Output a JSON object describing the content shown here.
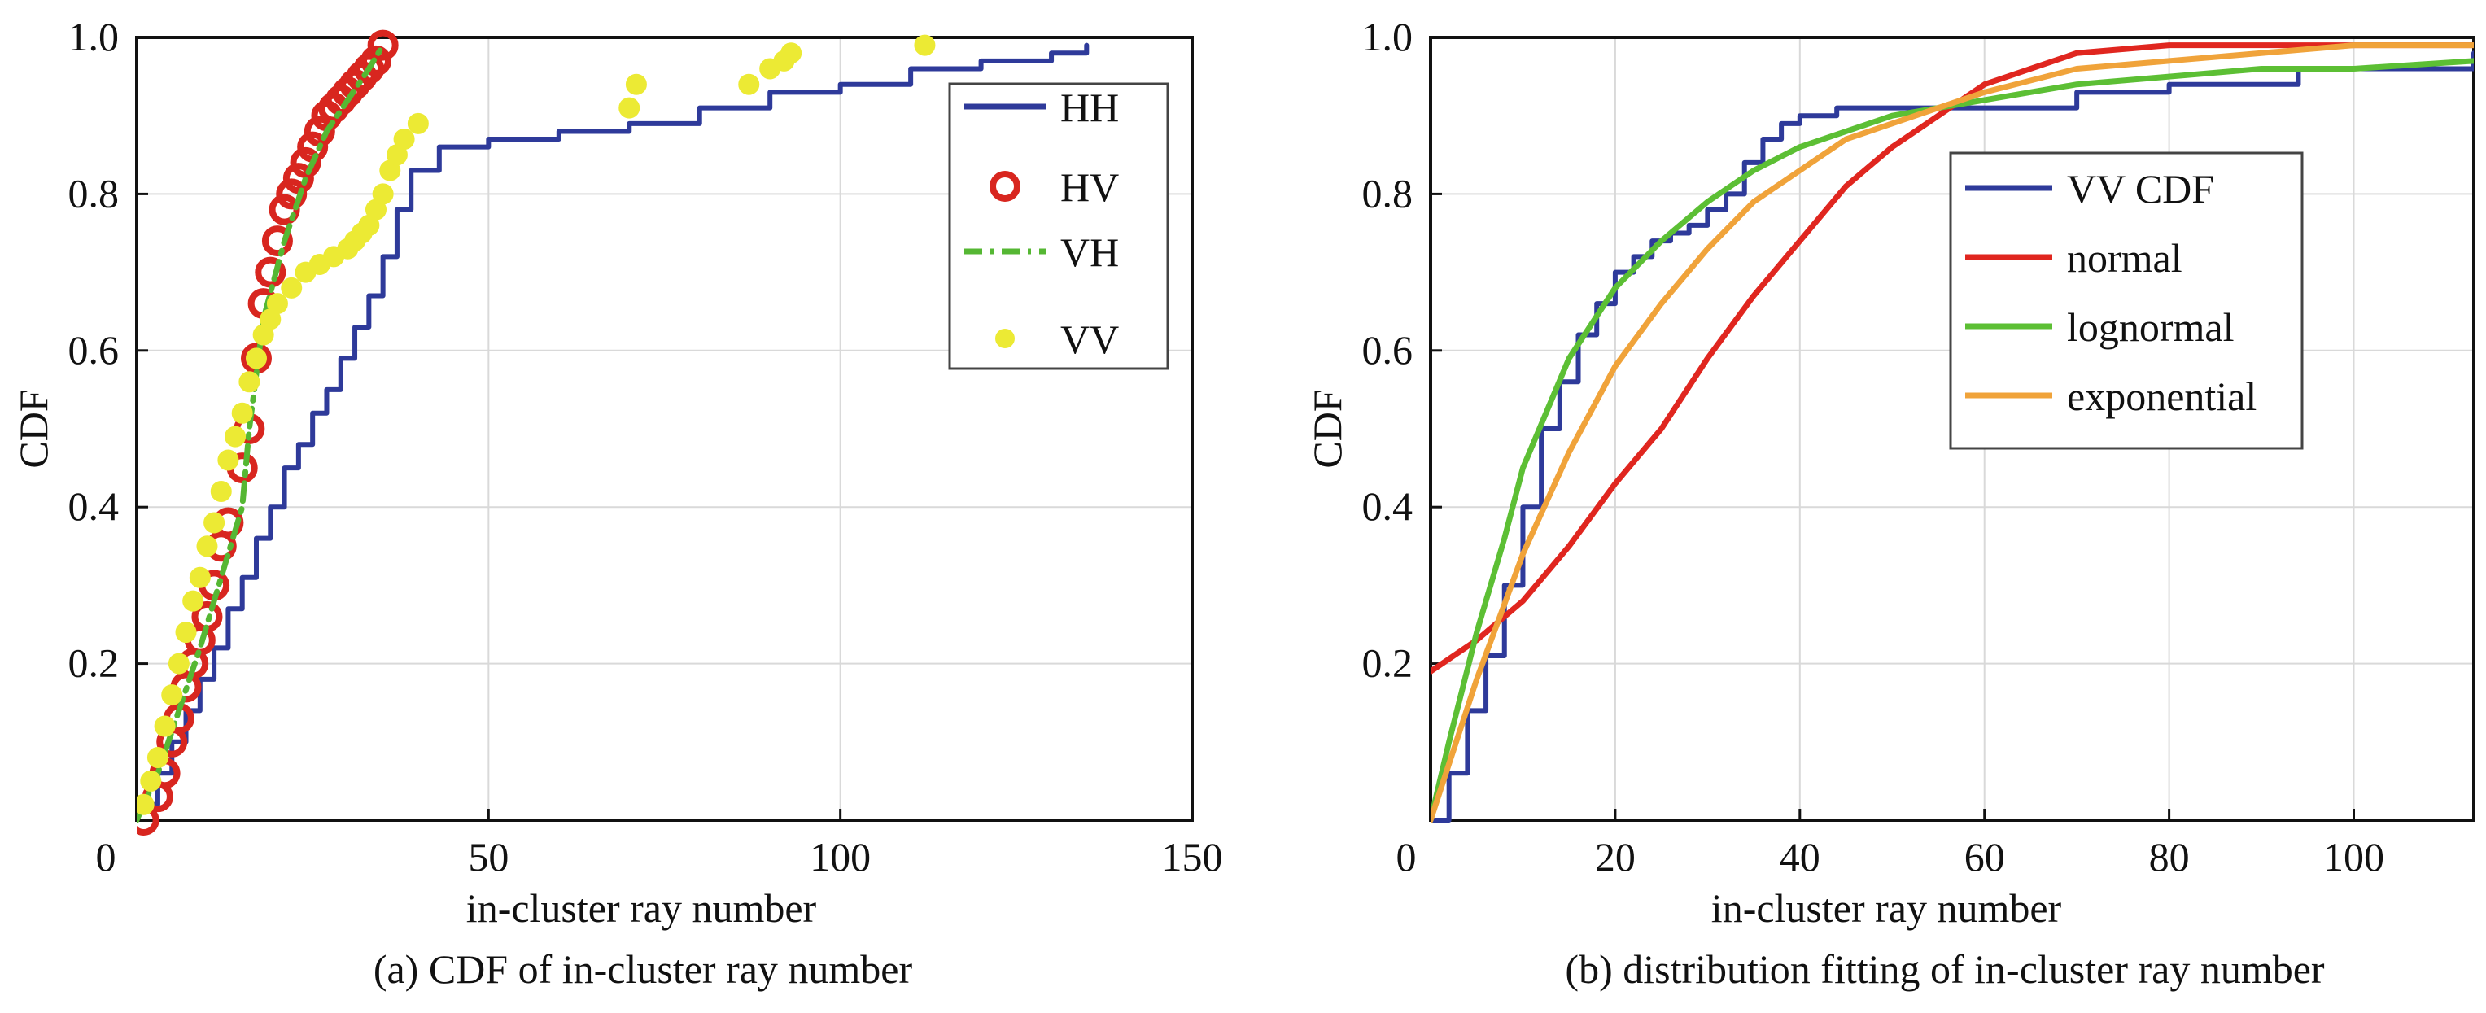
{
  "chart_data": [
    {
      "type": "line",
      "caption": "(a) CDF of in-cluster ray number",
      "xlabel": "in-cluster ray number",
      "ylabel": "CDF",
      "xlim": [
        0,
        150
      ],
      "ylim": [
        0,
        1
      ],
      "xticks": [
        0,
        50,
        100,
        150
      ],
      "xtick_labels": [
        "0",
        "50",
        "100",
        "150"
      ],
      "yticks": [
        0.2,
        0.4,
        0.6,
        0.8,
        1.0
      ],
      "ytick_labels": [
        "0.2",
        "0.4",
        "0.6",
        "0.8",
        "1.0"
      ],
      "grid": true,
      "legend_position": "top-right",
      "series": [
        {
          "name": "HH",
          "style": "step",
          "color": "#2e3a9a",
          "x": [
            1,
            3,
            5,
            7,
            9,
            11,
            13,
            15,
            17,
            19,
            21,
            23,
            25,
            27,
            29,
            31,
            33,
            35,
            37,
            39,
            43,
            50,
            60,
            70,
            80,
            90,
            100,
            110,
            120,
            130,
            135
          ],
          "y": [
            0.02,
            0.06,
            0.1,
            0.14,
            0.18,
            0.22,
            0.27,
            0.31,
            0.36,
            0.4,
            0.45,
            0.48,
            0.52,
            0.55,
            0.59,
            0.63,
            0.67,
            0.72,
            0.78,
            0.83,
            0.86,
            0.87,
            0.88,
            0.89,
            0.91,
            0.93,
            0.94,
            0.96,
            0.97,
            0.98,
            0.99
          ]
        },
        {
          "name": "HV",
          "style": "markers",
          "color": "#d8261f",
          "x": [
            1,
            3,
            4,
            5,
            6,
            7,
            8,
            9,
            10,
            11,
            12,
            13,
            15,
            16,
            17,
            18,
            19,
            20,
            21,
            22,
            23,
            24,
            25,
            26,
            27,
            28,
            29,
            30,
            31,
            32,
            33,
            34,
            35
          ],
          "y": [
            0.0,
            0.03,
            0.06,
            0.1,
            0.13,
            0.17,
            0.2,
            0.23,
            0.26,
            0.3,
            0.35,
            0.38,
            0.45,
            0.5,
            0.59,
            0.66,
            0.7,
            0.74,
            0.78,
            0.8,
            0.82,
            0.84,
            0.86,
            0.88,
            0.9,
            0.91,
            0.92,
            0.93,
            0.94,
            0.95,
            0.96,
            0.97,
            0.99
          ]
        },
        {
          "name": "VH",
          "style": "dashdot",
          "color": "#55b733",
          "x": [
            0,
            3,
            6,
            9,
            12,
            15,
            16,
            18,
            21,
            24,
            27,
            30,
            33,
            35
          ],
          "y": [
            0.0,
            0.06,
            0.14,
            0.22,
            0.31,
            0.4,
            0.5,
            0.64,
            0.74,
            0.82,
            0.88,
            0.92,
            0.96,
            0.99
          ]
        },
        {
          "name": "VV",
          "style": "markers",
          "color": "#ecea34",
          "x": [
            1,
            2,
            3,
            4,
            5,
            6,
            7,
            8,
            9,
            10,
            11,
            12,
            13,
            14,
            15,
            16,
            17,
            18,
            19,
            20,
            22,
            24,
            26,
            28,
            30,
            31,
            32,
            33,
            34,
            35,
            36,
            37,
            38,
            40,
            70,
            71,
            87,
            90,
            92,
            93,
            112
          ],
          "y": [
            0.02,
            0.05,
            0.08,
            0.12,
            0.16,
            0.2,
            0.24,
            0.28,
            0.31,
            0.35,
            0.38,
            0.42,
            0.46,
            0.49,
            0.52,
            0.56,
            0.59,
            0.62,
            0.64,
            0.66,
            0.68,
            0.7,
            0.71,
            0.72,
            0.73,
            0.74,
            0.75,
            0.76,
            0.78,
            0.8,
            0.83,
            0.85,
            0.87,
            0.89,
            0.91,
            0.94,
            0.94,
            0.96,
            0.97,
            0.98,
            0.99
          ]
        }
      ]
    },
    {
      "type": "line",
      "caption": "(b) distribution fitting of in-cluster ray number",
      "xlabel": "in-cluster ray number",
      "ylabel": "CDF",
      "xlim": [
        0,
        113
      ],
      "ylim": [
        0,
        1
      ],
      "xticks": [
        0,
        20,
        40,
        60,
        80,
        100
      ],
      "xtick_labels": [
        "0",
        "20",
        "40",
        "60",
        "80",
        "100"
      ],
      "yticks": [
        0.2,
        0.4,
        0.6,
        0.8,
        1.0
      ],
      "ytick_labels": [
        "0.2",
        "0.4",
        "0.6",
        "0.8",
        "1.0"
      ],
      "grid": true,
      "legend_position": "top-right",
      "series": [
        {
          "name": "VV CDF",
          "style": "step",
          "color": "#2e3a9a",
          "x": [
            0,
            2,
            4,
            6,
            8,
            10,
            12,
            14,
            16,
            18,
            20,
            22,
            24,
            26,
            28,
            30,
            32,
            34,
            36,
            38,
            40,
            44,
            50,
            60,
            70,
            80,
            94,
            113
          ],
          "y": [
            0.0,
            0.06,
            0.14,
            0.21,
            0.3,
            0.4,
            0.5,
            0.56,
            0.62,
            0.66,
            0.7,
            0.72,
            0.74,
            0.75,
            0.76,
            0.78,
            0.8,
            0.84,
            0.87,
            0.89,
            0.9,
            0.91,
            0.91,
            0.91,
            0.93,
            0.94,
            0.96,
            0.98
          ]
        },
        {
          "name": "normal",
          "style": "line",
          "color": "#e0261f",
          "x": [
            0,
            5,
            10,
            15,
            20,
            25,
            30,
            35,
            40,
            45,
            50,
            55,
            60,
            65,
            70,
            80,
            90,
            100,
            113
          ],
          "y": [
            0.19,
            0.23,
            0.28,
            0.35,
            0.43,
            0.5,
            0.59,
            0.67,
            0.74,
            0.81,
            0.86,
            0.9,
            0.94,
            0.96,
            0.98,
            0.99,
            0.99,
            0.99,
            0.99
          ]
        },
        {
          "name": "lognormal",
          "style": "line",
          "color": "#5cbf34",
          "x": [
            0,
            2,
            5,
            8,
            10,
            15,
            20,
            25,
            30,
            35,
            40,
            45,
            50,
            60,
            70,
            80,
            90,
            100,
            113
          ],
          "y": [
            0.0,
            0.1,
            0.24,
            0.36,
            0.45,
            0.59,
            0.68,
            0.74,
            0.79,
            0.83,
            0.86,
            0.88,
            0.9,
            0.92,
            0.94,
            0.95,
            0.96,
            0.96,
            0.97
          ]
        },
        {
          "name": "exponential",
          "style": "line",
          "color": "#f0a33a",
          "x": [
            0,
            5,
            10,
            15,
            20,
            25,
            30,
            35,
            40,
            45,
            50,
            60,
            70,
            80,
            90,
            100,
            113
          ],
          "y": [
            0.0,
            0.18,
            0.34,
            0.47,
            0.58,
            0.66,
            0.73,
            0.79,
            0.83,
            0.87,
            0.89,
            0.93,
            0.96,
            0.97,
            0.98,
            0.99,
            0.99
          ]
        }
      ]
    }
  ]
}
